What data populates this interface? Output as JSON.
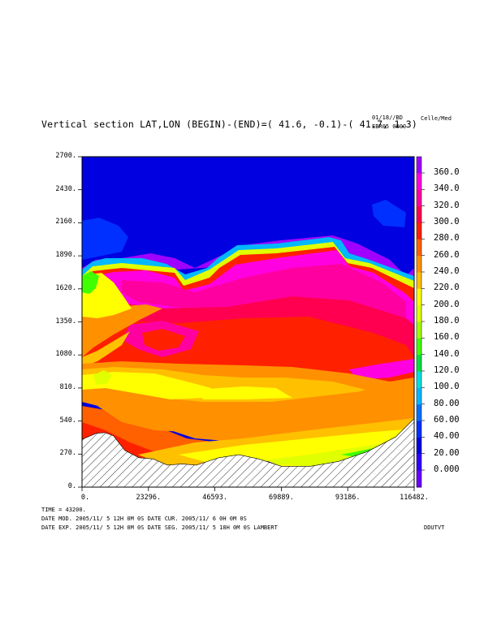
{
  "header": {
    "title": "Vertical section LAT,LON (BEGIN)-(END)=( 41.6, -0.1)-( 41.7,  1.3)",
    "date_code": "01/18//BD",
    "run_code": "EBR05 0000",
    "units": "Celle/Med"
  },
  "footer": {
    "time_line": "TIME =    43200.",
    "line1": "DATE MOD. 2005/11/ 5  12H 0M 0S    DATE CUR. 2005/11/ 6   0H 0M 0S",
    "line2": "DATE EXP.  2005/11/ 5  12H 0M 0S    DATE SEG. 2005/11/ 5  18H 0M 0S    LAMBERT",
    "code": "DDUTVT"
  },
  "colors": {
    "c0": "#6a00ff",
    "c20": "#3000ff",
    "c40": "#0000e0",
    "c60": "#0030ff",
    "c80": "#0070ff",
    "c100": "#00b8ff",
    "c120": "#00e0e0",
    "c140": "#00e040",
    "c160": "#40ff00",
    "c180": "#a0ff00",
    "c200": "#e0ff00",
    "c220": "#ffff00",
    "c240": "#ffc000",
    "c260": "#ff9000",
    "c280": "#ff6000",
    "c300": "#ff2000",
    "c320": "#ff0050",
    "c340": "#ff00a0",
    "c360": "#ff00e0",
    "top": "#a000ff"
  },
  "chart_data": {
    "type": "heatmap",
    "title": "Vertical section LAT,LON (BEGIN)-(END)=( 41.6, -0.1)-( 41.7,  1.3)",
    "xlim": [
      0,
      116482
    ],
    "ylim": [
      0,
      2700
    ],
    "x_ticks": [
      "0.",
      "23296.",
      "46593.",
      "69889.",
      "93186.",
      "116482."
    ],
    "y_ticks": [
      "0.",
      "270.",
      "540.",
      "810.",
      "1080.",
      "1350.",
      "1620.",
      "1890.",
      "2160.",
      "2430.",
      "2700."
    ],
    "colorbar_labels": [
      "0.000",
      "20.00",
      "40.00",
      "60.00",
      "80.00",
      "100.0",
      "120.0",
      "140.0",
      "160.0",
      "180.0",
      "200.0",
      "220.0",
      "240.0",
      "260.0",
      "280.0",
      "300.0",
      "320.0",
      "340.0",
      "360.0"
    ],
    "terrain": [
      [
        0,
        390
      ],
      [
        5000,
        440
      ],
      [
        8000,
        445
      ],
      [
        11000,
        420
      ],
      [
        15000,
        300
      ],
      [
        20000,
        240
      ],
      [
        25000,
        230
      ],
      [
        30000,
        180
      ],
      [
        35000,
        190
      ],
      [
        40000,
        180
      ],
      [
        48000,
        240
      ],
      [
        55000,
        265
      ],
      [
        62000,
        230
      ],
      [
        70000,
        170
      ],
      [
        80000,
        170
      ],
      [
        90000,
        210
      ],
      [
        100000,
        290
      ],
      [
        110000,
        410
      ],
      [
        116482,
        560
      ]
    ]
  }
}
